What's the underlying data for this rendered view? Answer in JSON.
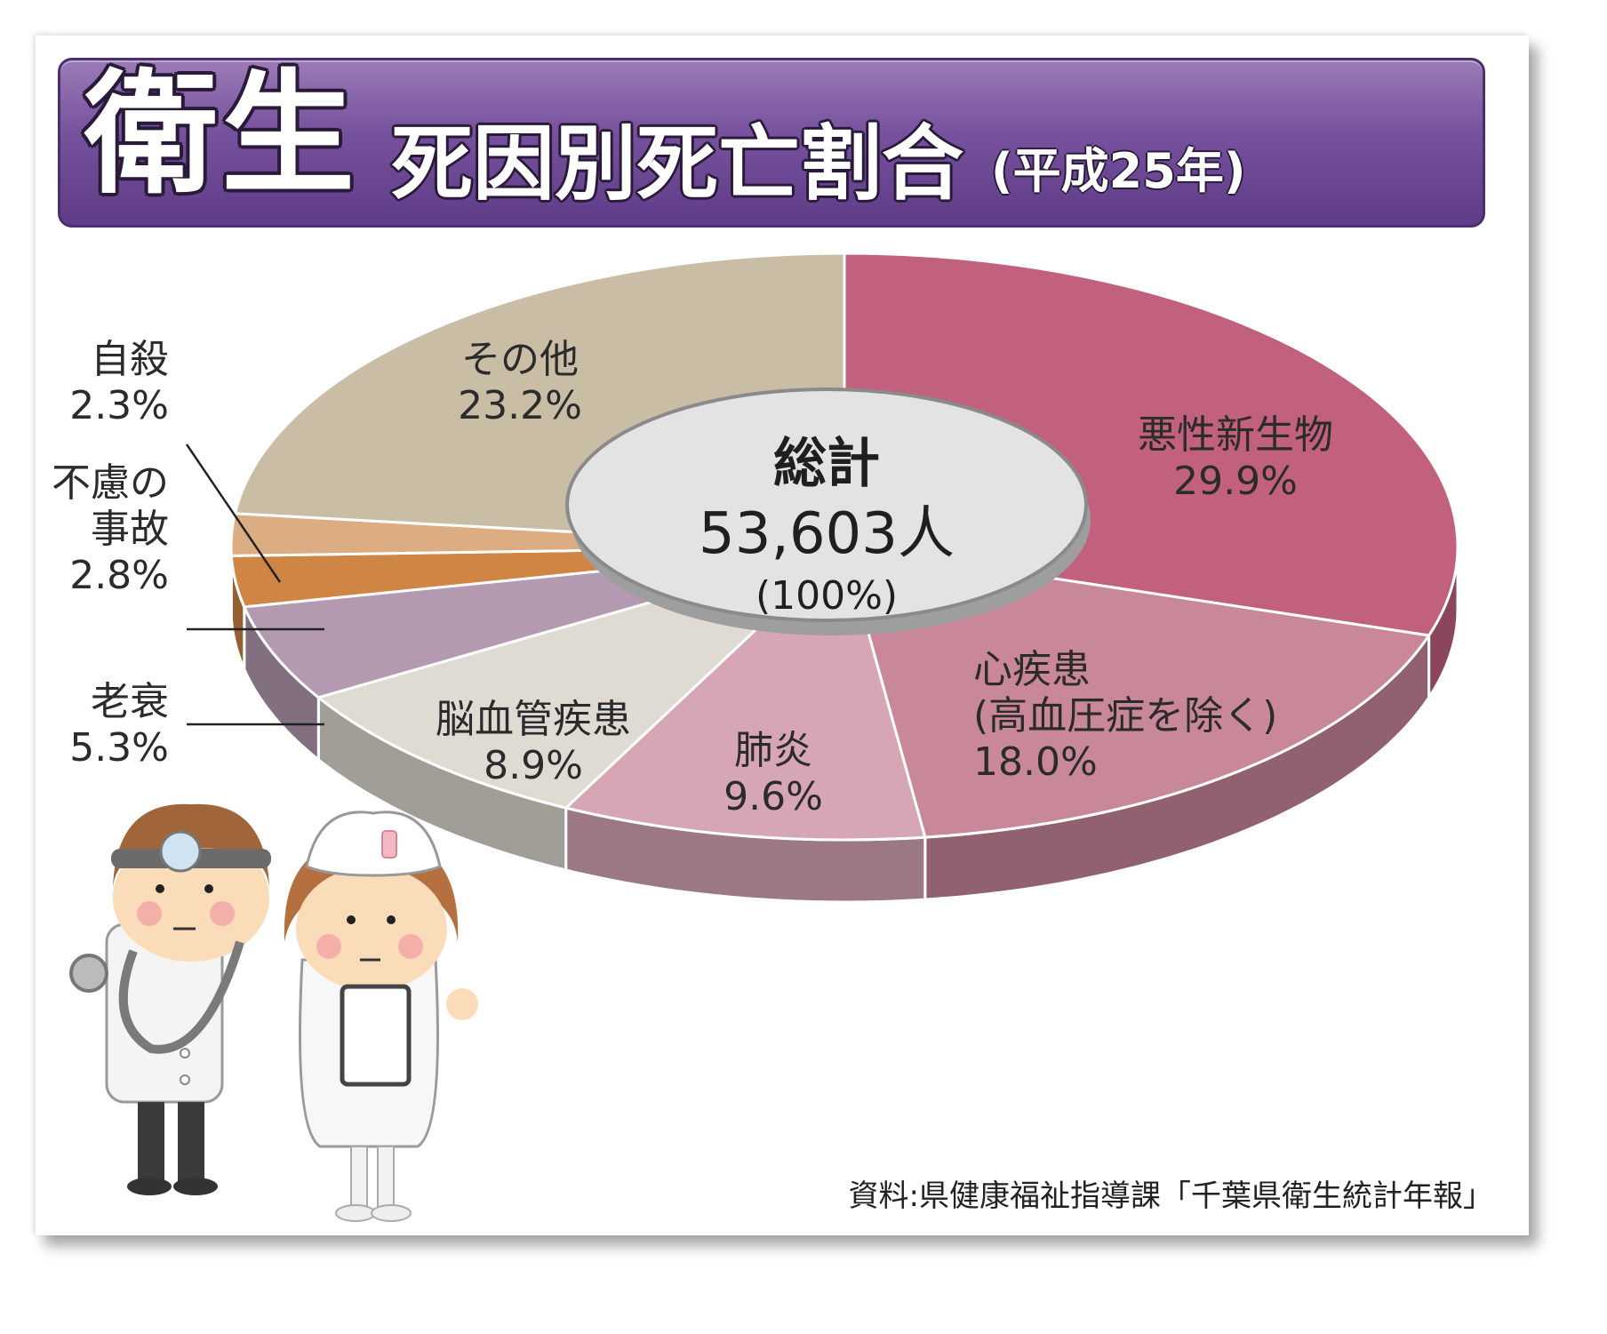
{
  "header": {
    "main": "衛生",
    "subtitle": "死因別死亡割合",
    "year": "(平成25年)"
  },
  "chart_data": {
    "type": "pie",
    "title": "死因別死亡割合",
    "center_label": {
      "title": "総計",
      "total": "53,603人",
      "percent": "(100%)"
    },
    "slices": [
      {
        "name": "悪性新生物",
        "value": 29.9,
        "label": "29.9%",
        "color": "#c2617e"
      },
      {
        "name": "心疾患\n(高血圧症を除く)",
        "value": 18.0,
        "label": "18.0%",
        "color": "#c9879a"
      },
      {
        "name": "肺炎",
        "value": 9.6,
        "label": "9.6%",
        "color": "#d7a6b4"
      },
      {
        "name": "脳血管疾患",
        "value": 8.9,
        "label": "8.9%",
        "color": "#dfdbd3"
      },
      {
        "name": "老衰",
        "value": 5.3,
        "label": "5.3%",
        "color": "#b49ab1"
      },
      {
        "name": "不慮の\n事故",
        "value": 2.8,
        "label": "2.8%",
        "color": "#cf8544"
      },
      {
        "name": "自殺",
        "value": 2.3,
        "label": "2.3%",
        "color": "#dcad83"
      },
      {
        "name": "その他",
        "value": 23.2,
        "label": "23.2%",
        "color": "#c9bda6"
      }
    ]
  },
  "source": "資料:県健康福祉指導課「千葉県衛生統計年報」"
}
